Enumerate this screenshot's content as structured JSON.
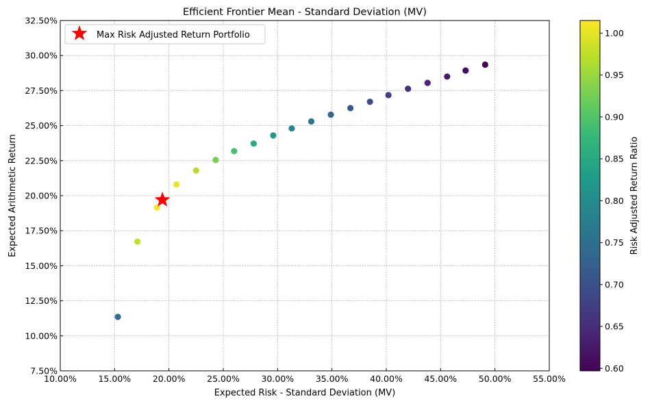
{
  "chart_data": {
    "type": "scatter",
    "title": "Efficient Frontier Mean - Standard Deviation (MV)",
    "xlabel": "Expected Risk - Standard Deviation (MV)",
    "ylabel": "Expected Arithmetic Return",
    "xlim": [
      0.1,
      0.55
    ],
    "ylim": [
      0.075,
      0.325
    ],
    "x_ticks": [
      0.1,
      0.15,
      0.2,
      0.25,
      0.3,
      0.35,
      0.4,
      0.45,
      0.5,
      0.55
    ],
    "x_tick_labels": [
      "10.00%",
      "15.00%",
      "20.00%",
      "25.00%",
      "30.00%",
      "35.00%",
      "40.00%",
      "45.00%",
      "50.00%",
      "55.00%"
    ],
    "y_ticks": [
      0.075,
      0.1,
      0.125,
      0.15,
      0.175,
      0.2,
      0.225,
      0.25,
      0.275,
      0.3,
      0.325
    ],
    "y_tick_labels": [
      "7.50%",
      "10.00%",
      "12.50%",
      "15.00%",
      "17.50%",
      "20.00%",
      "22.50%",
      "25.00%",
      "27.50%",
      "30.00%",
      "32.50%"
    ],
    "grid": true,
    "legend_position": "top-left",
    "points": [
      {
        "x": 0.153,
        "y": 0.1135,
        "ratio": 0.743
      },
      {
        "x": 0.171,
        "y": 0.1672,
        "ratio": 0.977
      },
      {
        "x": 0.189,
        "y": 0.1915,
        "ratio": 1.013
      },
      {
        "x": 0.207,
        "y": 0.208,
        "ratio": 1.005
      },
      {
        "x": 0.225,
        "y": 0.218,
        "ratio": 0.969
      },
      {
        "x": 0.243,
        "y": 0.2255,
        "ratio": 0.928
      },
      {
        "x": 0.26,
        "y": 0.2318,
        "ratio": 0.891
      },
      {
        "x": 0.278,
        "y": 0.2372,
        "ratio": 0.853
      },
      {
        "x": 0.296,
        "y": 0.243,
        "ratio": 0.821
      },
      {
        "x": 0.313,
        "y": 0.248,
        "ratio": 0.792
      },
      {
        "x": 0.331,
        "y": 0.253,
        "ratio": 0.764
      },
      {
        "x": 0.349,
        "y": 0.2578,
        "ratio": 0.739
      },
      {
        "x": 0.367,
        "y": 0.2625,
        "ratio": 0.715
      },
      {
        "x": 0.385,
        "y": 0.267,
        "ratio": 0.694
      },
      {
        "x": 0.402,
        "y": 0.2718,
        "ratio": 0.676
      },
      {
        "x": 0.42,
        "y": 0.2763,
        "ratio": 0.658
      },
      {
        "x": 0.438,
        "y": 0.2805,
        "ratio": 0.64
      },
      {
        "x": 0.456,
        "y": 0.285,
        "ratio": 0.625
      },
      {
        "x": 0.473,
        "y": 0.2893,
        "ratio": 0.611
      },
      {
        "x": 0.491,
        "y": 0.2935,
        "ratio": 0.598
      }
    ],
    "highlight": {
      "label": "Max Risk Adjusted Return Portfolio",
      "x": 0.194,
      "y": 0.197,
      "color": "#ff0000",
      "marker": "star"
    },
    "colorbar": {
      "label": "Risk Adjusted Return Ratio",
      "colormap": "viridis",
      "range": [
        0.597,
        1.015
      ],
      "ticks": [
        0.6,
        0.65,
        0.7,
        0.75,
        0.8,
        0.85,
        0.9,
        0.95,
        1.0
      ],
      "tick_labels": [
        "0.60",
        "0.65",
        "0.70",
        "0.75",
        "0.80",
        "0.85",
        "0.90",
        "0.95",
        "1.00"
      ]
    }
  }
}
